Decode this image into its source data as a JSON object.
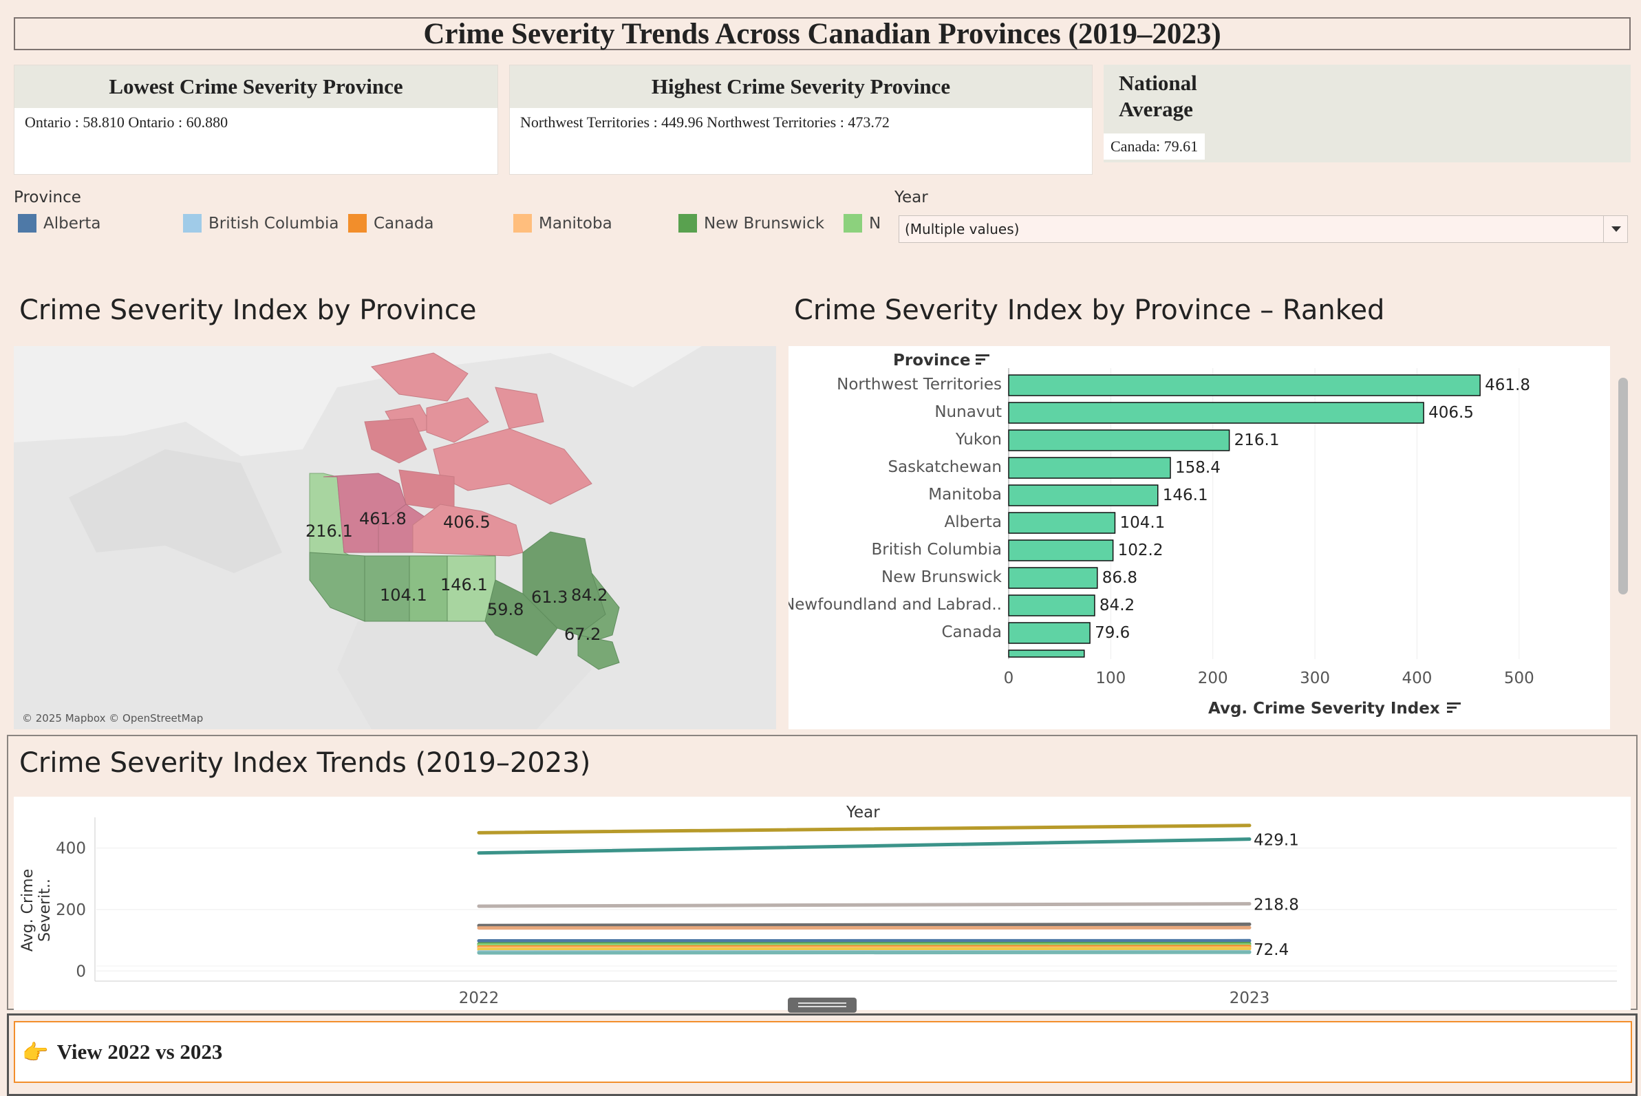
{
  "header": {
    "title": "Crime Severity Trends Across Canadian Provinces (2019–2023)"
  },
  "kpis": {
    "lowest": {
      "title": "Lowest Crime Severity Province",
      "text": "Ontario : 58.810   Ontario : 60.880"
    },
    "highest": {
      "title": "Highest Crime Severity Province",
      "text": "Northwest Territories : 449.96   Northwest Territories : 473.72"
    },
    "national": {
      "title_line1": "National",
      "title_line2": "Average",
      "text": "Canada: 79.61"
    }
  },
  "legend": {
    "title": "Province",
    "items": [
      {
        "label": "Alberta",
        "color": "#4e79a7"
      },
      {
        "label": "British Columbia",
        "color": "#a0cbe8"
      },
      {
        "label": "Canada",
        "color": "#f28e2b"
      },
      {
        "label": "Manitoba",
        "color": "#ffbe7d"
      },
      {
        "label": "New Brunswick",
        "color": "#59a14f"
      },
      {
        "label": "N",
        "color": "#8cd17d"
      }
    ]
  },
  "filter": {
    "title": "Year",
    "value": "(Multiple values)",
    "icon": "dropdown-arrow-icon"
  },
  "map": {
    "title": "Crime Severity Index by Province",
    "attribution": "© 2025 Mapbox © OpenStreetMap",
    "labels": [
      "216.1",
      "461.8",
      "406.5",
      "104.1",
      "146.1",
      "59.8",
      "61.3",
      "84.2",
      "67.2"
    ]
  },
  "ranked": {
    "title": "Crime Severity Index by Province – Ranked",
    "province_header": "Province",
    "x_axis_title": "Avg. Crime Severity Index",
    "bar_color": "#5fd3a4"
  },
  "trends": {
    "title": "Crime Severity Index Trends (2019–2023)",
    "x_title": "Year",
    "y_title": "Avg. Crime Severit..",
    "end_labels": [
      "429.1",
      "218.8",
      "72.4"
    ]
  },
  "footer_button": {
    "icon": "👉",
    "label": "View 2022 vs 2023"
  },
  "chart_data": [
    {
      "type": "bar",
      "categories": [
        "Northwest Territories",
        "Nunavut",
        "Yukon",
        "Saskatchewan",
        "Manitoba",
        "Alberta",
        "British Columbia",
        "New Brunswick",
        "Newfoundland and Labrad..",
        "Canada"
      ],
      "values": [
        461.8,
        406.5,
        216.1,
        158.4,
        146.1,
        104.1,
        102.2,
        86.8,
        84.2,
        79.6
      ],
      "value_labels": [
        "461.8",
        "406.5",
        "216.1",
        "158.4",
        "146.1",
        "104.1",
        "102.2",
        "86.8",
        "84.2",
        "79.6"
      ],
      "xlim": [
        0,
        550
      ],
      "x_ticks": [
        "0",
        "100",
        "200",
        "300",
        "400",
        "500"
      ],
      "grid": true
    },
    {
      "type": "line",
      "x": [
        "2022",
        "2023"
      ],
      "ylim": [
        -15,
        500
      ],
      "y_ticks": [
        "0",
        "200",
        "400"
      ],
      "series": [
        {
          "values": [
            449.96,
            473.72
          ],
          "color": "#b79a2a"
        },
        {
          "values": [
            384.0,
            429.1
          ],
          "color": "#3b9389"
        },
        {
          "values": [
            211.0,
            218.8
          ],
          "color": "#bab0ac"
        },
        {
          "values": [
            148.0,
            152.0
          ],
          "color": "#6e6e6e"
        },
        {
          "values": [
            140.0,
            141.0
          ],
          "color": "#e8a87c"
        },
        {
          "values": [
            98.0,
            98.5
          ],
          "color": "#4e79a7"
        },
        {
          "values": [
            88.0,
            89.0
          ],
          "color": "#59a14f"
        },
        {
          "values": [
            84.0,
            84.5
          ],
          "color": "#8cd17d"
        },
        {
          "values": [
            78.0,
            79.6
          ],
          "color": "#f28e2b"
        },
        {
          "values": [
            74.0,
            74.5
          ],
          "color": "#ffbe7d"
        },
        {
          "values": [
            70.0,
            72.4
          ],
          "color": "#edc948"
        },
        {
          "values": [
            62.0,
            62.5
          ],
          "color": "#a0cbe8"
        },
        {
          "values": [
            58.81,
            60.88
          ],
          "color": "#76b7b2"
        }
      ]
    }
  ]
}
